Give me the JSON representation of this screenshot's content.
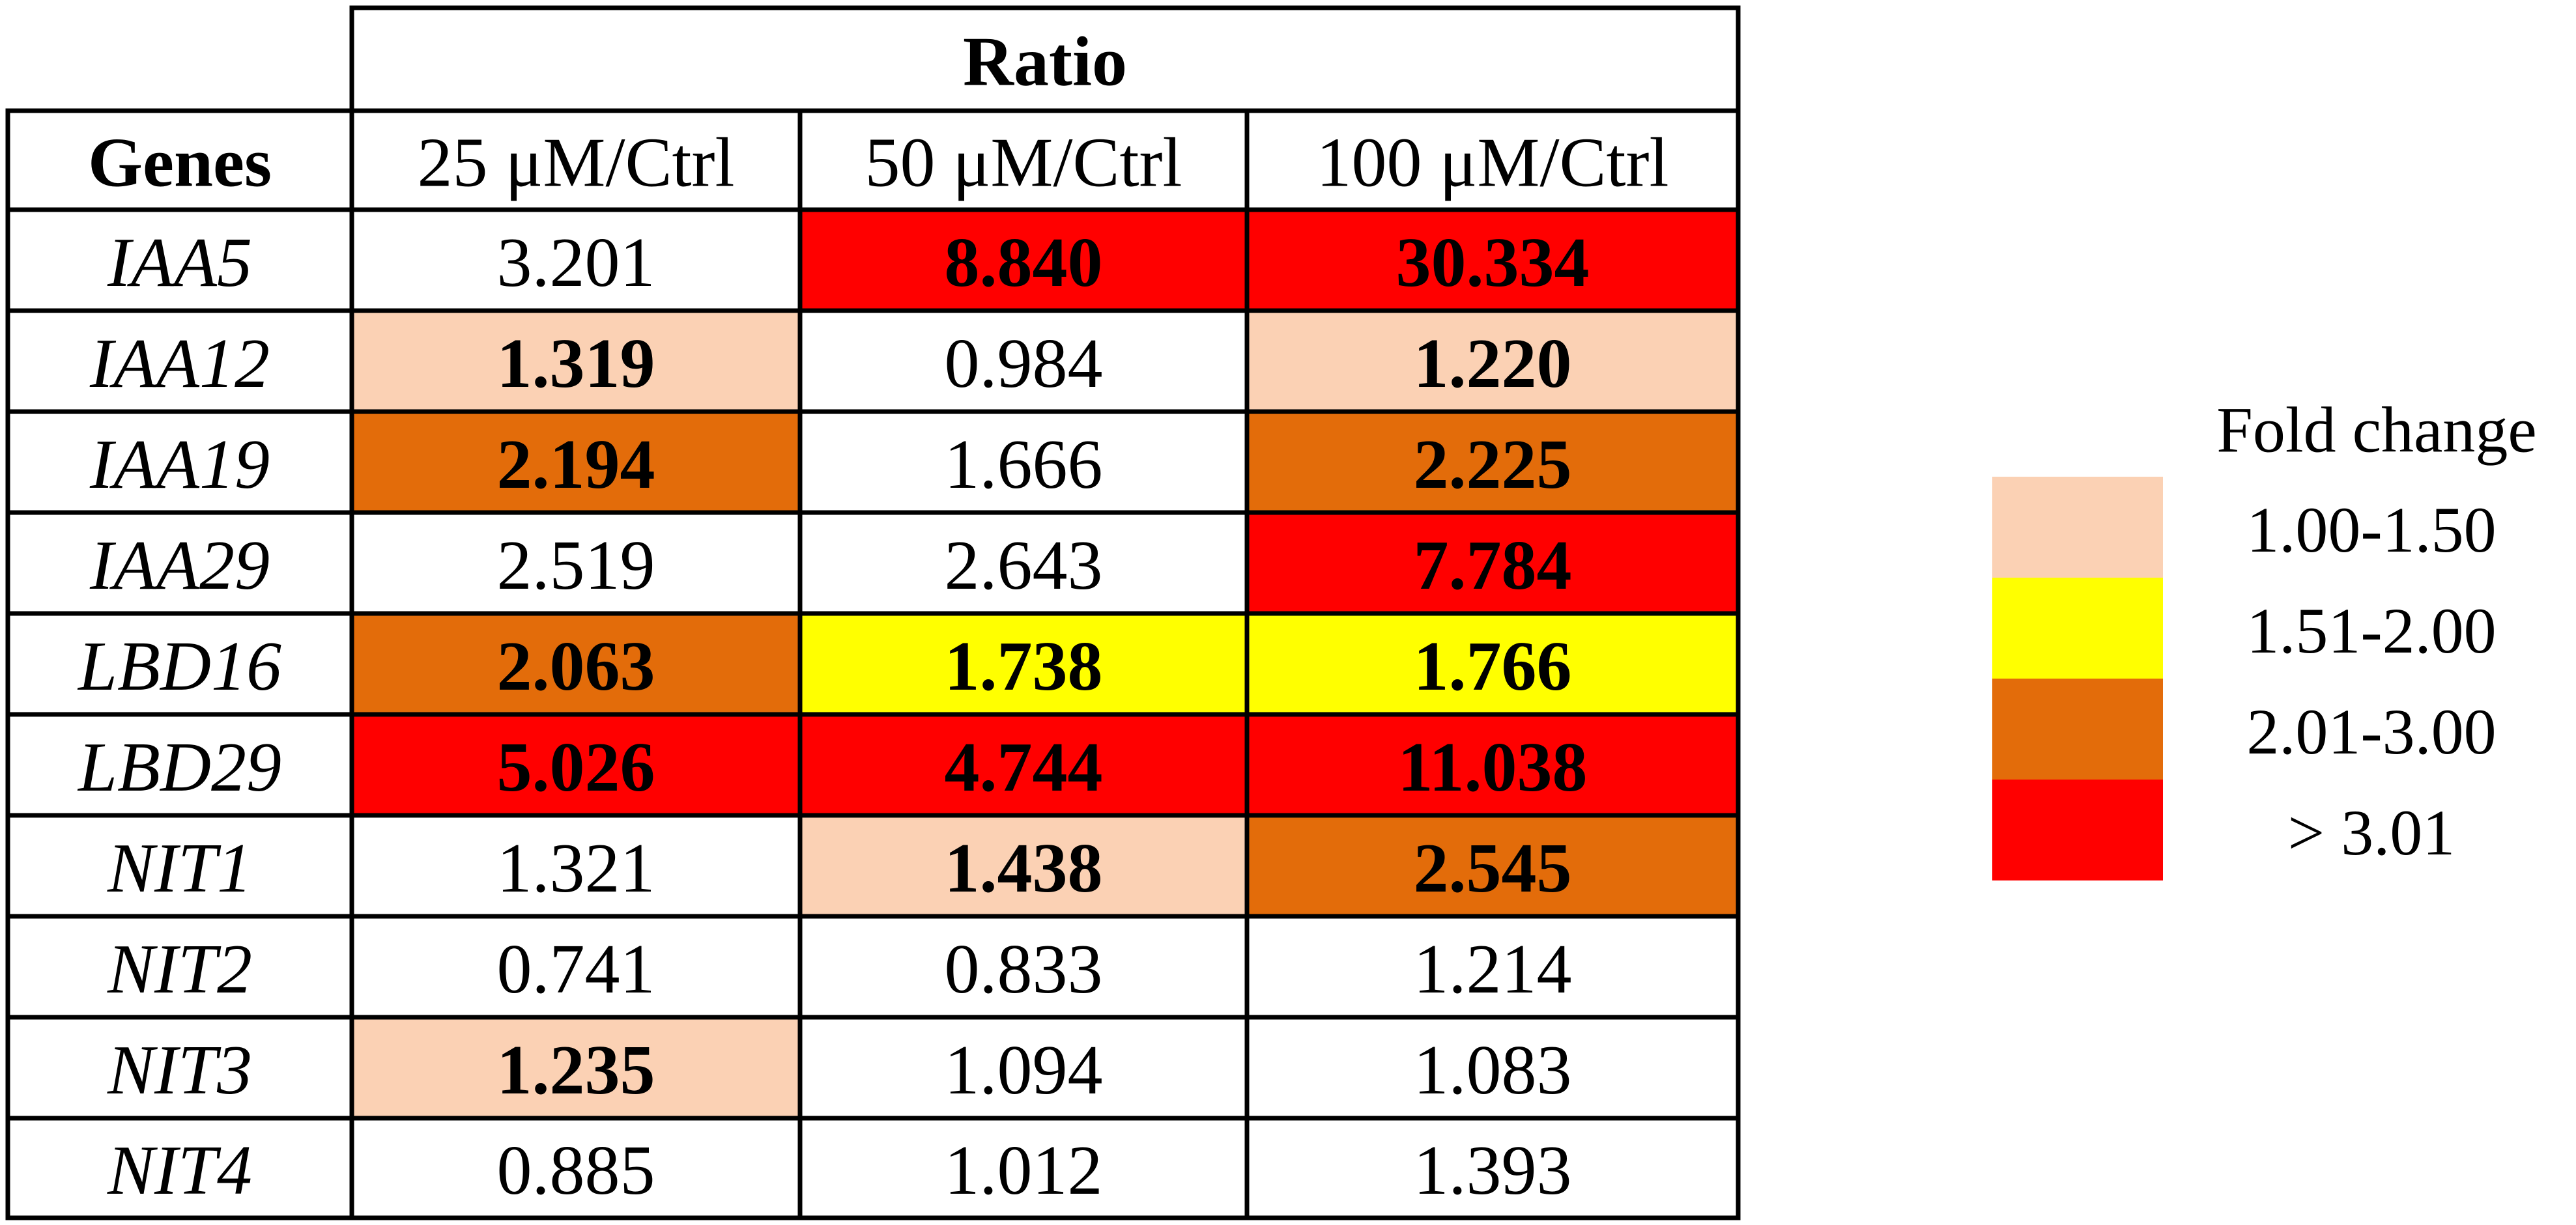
{
  "chart_data": {
    "type": "table",
    "header_group": "Ratio",
    "row_header": "Genes",
    "columns": [
      "25 μM/Ctrl",
      "50 μM/Ctrl",
      "100 μM/Ctrl"
    ],
    "rows": [
      {
        "gene": "IAA5",
        "values": [
          3.201,
          8.84,
          30.334
        ],
        "labels": [
          "3.201",
          "8.840",
          "30.334"
        ]
      },
      {
        "gene": "IAA12",
        "values": [
          1.319,
          0.984,
          1.22
        ],
        "labels": [
          "1.319",
          "0.984",
          "1.220"
        ]
      },
      {
        "gene": "IAA19",
        "values": [
          2.194,
          1.666,
          2.225
        ],
        "labels": [
          "2.194",
          "1.666",
          "2.225"
        ]
      },
      {
        "gene": "IAA29",
        "values": [
          2.519,
          2.643,
          7.784
        ],
        "labels": [
          "2.519",
          "2.643",
          "7.784"
        ]
      },
      {
        "gene": "LBD16",
        "values": [
          2.063,
          1.738,
          1.766
        ],
        "labels": [
          "2.063",
          "1.738",
          "1.766"
        ]
      },
      {
        "gene": "LBD29",
        "values": [
          5.026,
          4.744,
          11.038
        ],
        "labels": [
          "5.026",
          "4.744",
          "11.038"
        ]
      },
      {
        "gene": "NIT1",
        "values": [
          1.321,
          1.438,
          2.545
        ],
        "labels": [
          "1.321",
          "1.438",
          "2.545"
        ]
      },
      {
        "gene": "NIT2",
        "values": [
          0.741,
          0.833,
          1.214
        ],
        "labels": [
          "0.741",
          "0.833",
          "1.214"
        ]
      },
      {
        "gene": "NIT3",
        "values": [
          1.235,
          1.094,
          1.083
        ],
        "labels": [
          "1.235",
          "1.094",
          "1.083"
        ]
      },
      {
        "gene": "NIT4",
        "values": [
          0.885,
          1.012,
          1.393
        ],
        "labels": [
          "0.885",
          "1.012",
          "1.393"
        ]
      }
    ],
    "highlighted": [
      [
        false,
        true,
        true
      ],
      [
        true,
        false,
        true
      ],
      [
        true,
        false,
        true
      ],
      [
        false,
        false,
        true
      ],
      [
        true,
        true,
        true
      ],
      [
        true,
        true,
        true
      ],
      [
        false,
        true,
        true
      ],
      [
        false,
        false,
        false
      ],
      [
        true,
        false,
        false
      ],
      [
        false,
        false,
        false
      ]
    ],
    "legend": {
      "title": "Fold change",
      "placement": "right",
      "items": [
        {
          "label": "1.00-1.50",
          "color": "#fbd1b4",
          "min": 1.0,
          "max": 1.5
        },
        {
          "label": "1.51-2.00",
          "color": "#ffff00",
          "min": 1.51,
          "max": 2.0
        },
        {
          "label": "2.01-3.00",
          "color": "#e36c0a",
          "min": 2.01,
          "max": 3.0
        },
        {
          "label": "> 3.01",
          "color": "#ff0000",
          "min": 3.01,
          "max": null
        }
      ]
    },
    "colors": {
      "border": "#000000",
      "unhighlighted_cell": "#ffffff"
    }
  }
}
